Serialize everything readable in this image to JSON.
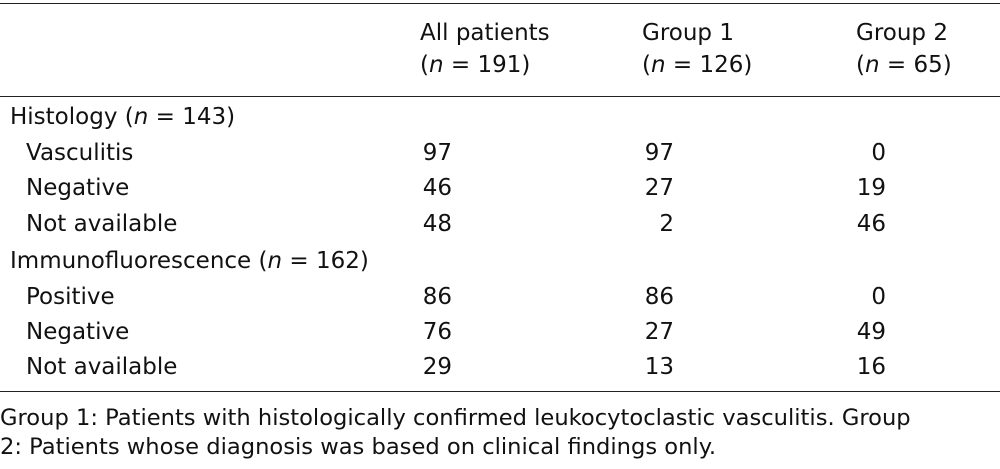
{
  "columns": [
    {
      "label": "All patients",
      "n_label": "(n = 191)",
      "n_var": "n",
      "n_eq": " = 191"
    },
    {
      "label": "Group 1",
      "n_label": "(n = 126)",
      "n_var": "n",
      "n_eq": " = 126"
    },
    {
      "label": "Group 2",
      "n_label": "(n = 65)",
      "n_var": "n",
      "n_eq": " = 65"
    }
  ],
  "sections": [
    {
      "title": "Histology",
      "n_text": "n",
      "n_eq": " = 143",
      "rows": [
        {
          "label": "Vasculitis",
          "values": [
            "97",
            "97",
            "0"
          ]
        },
        {
          "label": "Negative",
          "values": [
            "46",
            "27",
            "19"
          ]
        },
        {
          "label": "Not available",
          "values": [
            "48",
            "2",
            "46"
          ]
        }
      ]
    },
    {
      "title": "Immunofluorescence",
      "n_text": "n",
      "n_eq": " = 162",
      "rows": [
        {
          "label": "Positive",
          "values": [
            "86",
            "86",
            "0"
          ]
        },
        {
          "label": "Negative",
          "values": [
            "76",
            "27",
            "49"
          ]
        },
        {
          "label": "Not available",
          "values": [
            "29",
            "13",
            "16"
          ]
        }
      ]
    }
  ],
  "footnote": {
    "line1": "Group 1: Patients with histologically confirmed leukocytoclastic vasculitis. Group",
    "line2": "2: Patients whose diagnosis was based on clinical findings only."
  }
}
